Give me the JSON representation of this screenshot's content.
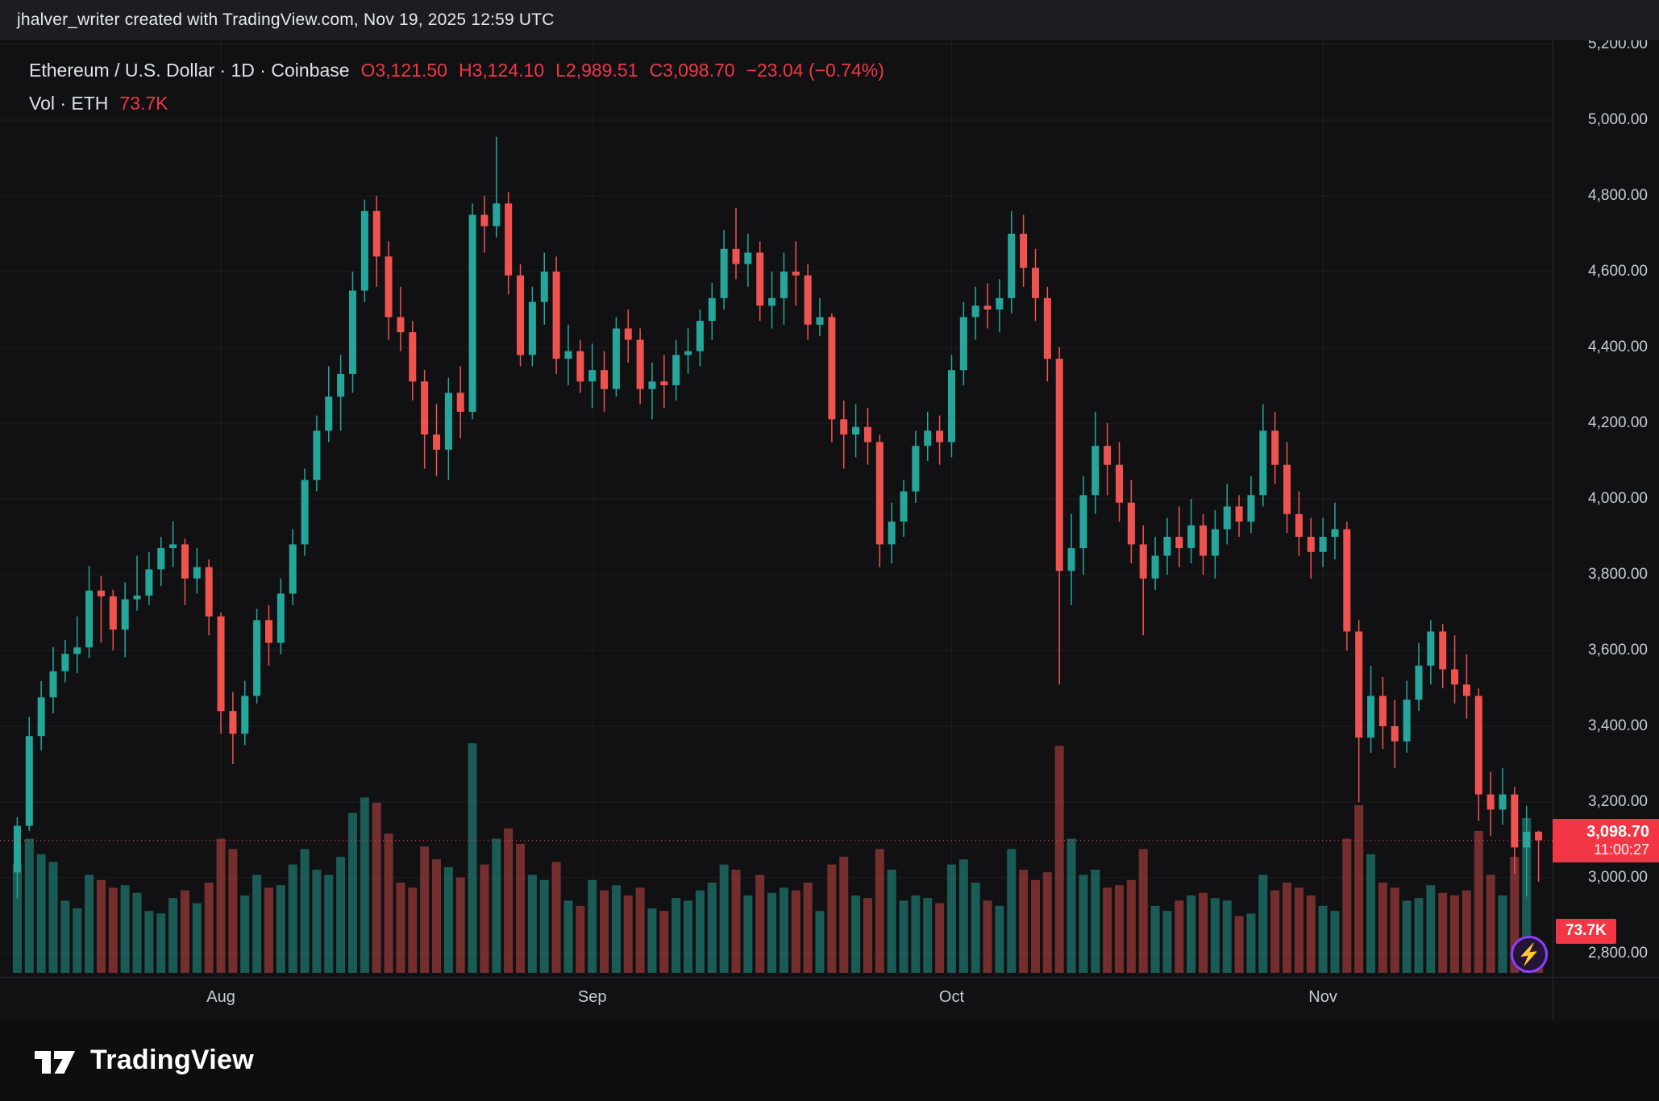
{
  "attribution": "jhalver_writer created with TradingView.com, Nov 19, 2025 12:59 UTC",
  "legend": {
    "title": "Ethereum / U.S. Dollar · 1D · Coinbase",
    "o": "O3,121.50",
    "h": "H3,124.10",
    "l": "L2,989.51",
    "c": "C3,098.70",
    "change": "−23.04 (−0.74%)",
    "vol_label": "Vol · ETH",
    "vol_value": "73.7K"
  },
  "price_axis": {
    "values": [
      5200,
      5000,
      4800,
      4600,
      4400,
      4200,
      4000,
      3800,
      3600,
      3400,
      3200,
      3000,
      2800
    ],
    "labels": [
      "5,200.00",
      "5,000.00",
      "4,800.00",
      "4,600.00",
      "4,400.00",
      "4,200.00",
      "4,000.00",
      "3,800.00",
      "3,600.00",
      "3,400.00",
      "3,200.00",
      "3,000.00",
      "2,800.00"
    ]
  },
  "time_axis": {
    "labels": [
      {
        "label": "Aug",
        "index": 17
      },
      {
        "label": "Sep",
        "index": 48
      },
      {
        "label": "Oct",
        "index": 78
      },
      {
        "label": "Nov",
        "index": 109
      }
    ]
  },
  "price_label": {
    "price": "3,098.70",
    "countdown": "11:00:27"
  },
  "volume_label": {
    "value": "73.7K"
  },
  "boost_icon_glyph": "⚡",
  "footer": {
    "brand": "TradingView"
  },
  "colors": {
    "up": "#26a69a",
    "down": "#ef5350",
    "vol_up": "rgba(38,166,154,0.5)",
    "vol_down": "rgba(239,83,80,0.45)",
    "accent_red": "#f23645",
    "axis_text": "#c8cbd1",
    "grid": "rgba(255,255,255,0.05)"
  },
  "chart_data": {
    "type": "candlestick",
    "symbol": "ETH/USD",
    "exchange": "Coinbase",
    "interval": "1D",
    "start_date": "2025-07-15",
    "end_date": "2025-11-19",
    "ylim": [
      2800,
      5200
    ],
    "current_price": 3098.7,
    "current_volume_k": 73.7,
    "volume_unit": "K ETH",
    "candle_fields": [
      "open",
      "high",
      "low",
      "close",
      "volume_k"
    ],
    "candles": [
      [
        3014,
        3160,
        2946,
        3137,
        420
      ],
      [
        3137,
        3425,
        3124,
        3374,
        520
      ],
      [
        3374,
        3519,
        3336,
        3476,
        460
      ],
      [
        3476,
        3609,
        3434,
        3545,
        430
      ],
      [
        3545,
        3628,
        3516,
        3591,
        280
      ],
      [
        3591,
        3690,
        3540,
        3608,
        250
      ],
      [
        3608,
        3823,
        3580,
        3758,
        380
      ],
      [
        3758,
        3796,
        3621,
        3743,
        360
      ],
      [
        3743,
        3760,
        3600,
        3655,
        330
      ],
      [
        3655,
        3780,
        3582,
        3735,
        340
      ],
      [
        3735,
        3850,
        3705,
        3745,
        310
      ],
      [
        3745,
        3860,
        3720,
        3814,
        240
      ],
      [
        3814,
        3900,
        3770,
        3870,
        230
      ],
      [
        3870,
        3941,
        3820,
        3880,
        290
      ],
      [
        3880,
        3895,
        3720,
        3790,
        320
      ],
      [
        3790,
        3870,
        3750,
        3820,
        270
      ],
      [
        3820,
        3840,
        3640,
        3690,
        350
      ],
      [
        3690,
        3700,
        3380,
        3440,
        520
      ],
      [
        3440,
        3490,
        3300,
        3380,
        480
      ],
      [
        3380,
        3520,
        3350,
        3480,
        300
      ],
      [
        3480,
        3710,
        3460,
        3680,
        380
      ],
      [
        3680,
        3720,
        3560,
        3620,
        330
      ],
      [
        3620,
        3790,
        3590,
        3750,
        340
      ],
      [
        3750,
        3920,
        3720,
        3880,
        420
      ],
      [
        3880,
        4080,
        3850,
        4050,
        480
      ],
      [
        4050,
        4220,
        4020,
        4180,
        400
      ],
      [
        4180,
        4350,
        4150,
        4270,
        380
      ],
      [
        4270,
        4380,
        4180,
        4330,
        450
      ],
      [
        4330,
        4600,
        4280,
        4550,
        620
      ],
      [
        4550,
        4790,
        4520,
        4760,
        680
      ],
      [
        4760,
        4800,
        4560,
        4640,
        660
      ],
      [
        4640,
        4680,
        4420,
        4480,
        540
      ],
      [
        4480,
        4560,
        4390,
        4440,
        350
      ],
      [
        4440,
        4470,
        4260,
        4310,
        330
      ],
      [
        4310,
        4340,
        4080,
        4170,
        490
      ],
      [
        4170,
        4250,
        4060,
        4130,
        440
      ],
      [
        4130,
        4320,
        4050,
        4280,
        410
      ],
      [
        4280,
        4350,
        4160,
        4230,
        370
      ],
      [
        4230,
        4780,
        4210,
        4750,
        890
      ],
      [
        4750,
        4800,
        4650,
        4720,
        420
      ],
      [
        4720,
        4956,
        4690,
        4780,
        520
      ],
      [
        4780,
        4810,
        4540,
        4590,
        560
      ],
      [
        4590,
        4620,
        4350,
        4380,
        500
      ],
      [
        4380,
        4560,
        4350,
        4520,
        380
      ],
      [
        4520,
        4650,
        4460,
        4600,
        360
      ],
      [
        4600,
        4640,
        4330,
        4370,
        430
      ],
      [
        4370,
        4460,
        4300,
        4390,
        280
      ],
      [
        4390,
        4420,
        4280,
        4310,
        260
      ],
      [
        4310,
        4410,
        4240,
        4340,
        360
      ],
      [
        4340,
        4390,
        4230,
        4290,
        320
      ],
      [
        4290,
        4480,
        4270,
        4450,
        340
      ],
      [
        4450,
        4500,
        4360,
        4420,
        300
      ],
      [
        4420,
        4450,
        4250,
        4290,
        330
      ],
      [
        4290,
        4360,
        4210,
        4310,
        250
      ],
      [
        4310,
        4380,
        4240,
        4300,
        240
      ],
      [
        4300,
        4420,
        4260,
        4380,
        290
      ],
      [
        4380,
        4450,
        4330,
        4390,
        280
      ],
      [
        4390,
        4500,
        4350,
        4470,
        320
      ],
      [
        4470,
        4570,
        4420,
        4530,
        350
      ],
      [
        4530,
        4710,
        4500,
        4660,
        420
      ],
      [
        4660,
        4768,
        4580,
        4620,
        400
      ],
      [
        4620,
        4700,
        4560,
        4650,
        300
      ],
      [
        4650,
        4680,
        4470,
        4510,
        380
      ],
      [
        4510,
        4600,
        4450,
        4530,
        310
      ],
      [
        4530,
        4650,
        4460,
        4600,
        330
      ],
      [
        4600,
        4680,
        4510,
        4590,
        320
      ],
      [
        4590,
        4620,
        4420,
        4460,
        350
      ],
      [
        4460,
        4530,
        4430,
        4480,
        240
      ],
      [
        4480,
        4490,
        4150,
        4210,
        420
      ],
      [
        4210,
        4260,
        4080,
        4170,
        450
      ],
      [
        4170,
        4250,
        4110,
        4190,
        300
      ],
      [
        4190,
        4240,
        4090,
        4150,
        290
      ],
      [
        4150,
        4170,
        3820,
        3880,
        480
      ],
      [
        3880,
        3990,
        3830,
        3940,
        400
      ],
      [
        3940,
        4050,
        3900,
        4020,
        280
      ],
      [
        4020,
        4180,
        3990,
        4140,
        300
      ],
      [
        4140,
        4230,
        4100,
        4180,
        290
      ],
      [
        4180,
        4220,
        4090,
        4150,
        270
      ],
      [
        4150,
        4380,
        4110,
        4340,
        420
      ],
      [
        4340,
        4520,
        4300,
        4480,
        440
      ],
      [
        4480,
        4560,
        4420,
        4510,
        350
      ],
      [
        4510,
        4570,
        4450,
        4500,
        280
      ],
      [
        4500,
        4580,
        4440,
        4530,
        260
      ],
      [
        4530,
        4760,
        4490,
        4700,
        480
      ],
      [
        4700,
        4750,
        4560,
        4610,
        400
      ],
      [
        4610,
        4660,
        4470,
        4530,
        360
      ],
      [
        4530,
        4560,
        4310,
        4370,
        390
      ],
      [
        4370,
        4400,
        3510,
        3810,
        880
      ],
      [
        3810,
        3960,
        3720,
        3870,
        520
      ],
      [
        3870,
        4060,
        3800,
        4010,
        380
      ],
      [
        4010,
        4230,
        3960,
        4140,
        400
      ],
      [
        4140,
        4200,
        4010,
        4090,
        330
      ],
      [
        4090,
        4150,
        3940,
        3990,
        340
      ],
      [
        3990,
        4050,
        3830,
        3880,
        360
      ],
      [
        3880,
        3930,
        3640,
        3790,
        480
      ],
      [
        3790,
        3900,
        3760,
        3850,
        260
      ],
      [
        3850,
        3950,
        3800,
        3900,
        240
      ],
      [
        3900,
        3980,
        3820,
        3870,
        280
      ],
      [
        3870,
        4000,
        3830,
        3930,
        300
      ],
      [
        3930,
        3960,
        3800,
        3850,
        310
      ],
      [
        3850,
        3970,
        3790,
        3920,
        290
      ],
      [
        3920,
        4040,
        3880,
        3980,
        280
      ],
      [
        3980,
        4010,
        3900,
        3940,
        220
      ],
      [
        3940,
        4060,
        3910,
        4010,
        230
      ],
      [
        4010,
        4250,
        3980,
        4180,
        380
      ],
      [
        4180,
        4230,
        4040,
        4090,
        320
      ],
      [
        4090,
        4150,
        3910,
        3960,
        350
      ],
      [
        3960,
        4020,
        3850,
        3900,
        330
      ],
      [
        3900,
        3950,
        3790,
        3860,
        300
      ],
      [
        3860,
        3950,
        3820,
        3900,
        260
      ],
      [
        3900,
        3990,
        3840,
        3920,
        240
      ],
      [
        3920,
        3940,
        3600,
        3650,
        520
      ],
      [
        3650,
        3680,
        3200,
        3370,
        650
      ],
      [
        3370,
        3560,
        3330,
        3480,
        460
      ],
      [
        3480,
        3530,
        3340,
        3400,
        350
      ],
      [
        3400,
        3470,
        3290,
        3360,
        330
      ],
      [
        3360,
        3520,
        3330,
        3470,
        280
      ],
      [
        3470,
        3620,
        3440,
        3560,
        290
      ],
      [
        3560,
        3680,
        3510,
        3650,
        340
      ],
      [
        3650,
        3670,
        3500,
        3550,
        310
      ],
      [
        3550,
        3640,
        3460,
        3510,
        300
      ],
      [
        3510,
        3590,
        3420,
        3480,
        320
      ],
      [
        3480,
        3500,
        3150,
        3220,
        550
      ],
      [
        3220,
        3280,
        3110,
        3180,
        380
      ],
      [
        3180,
        3290,
        3140,
        3220,
        300
      ],
      [
        3220,
        3240,
        3010,
        3080,
        450
      ],
      [
        3080,
        3190,
        2950,
        3121.5,
        600
      ],
      [
        3121.5,
        3124.1,
        2989.51,
        3098.7,
        73.7
      ]
    ]
  }
}
